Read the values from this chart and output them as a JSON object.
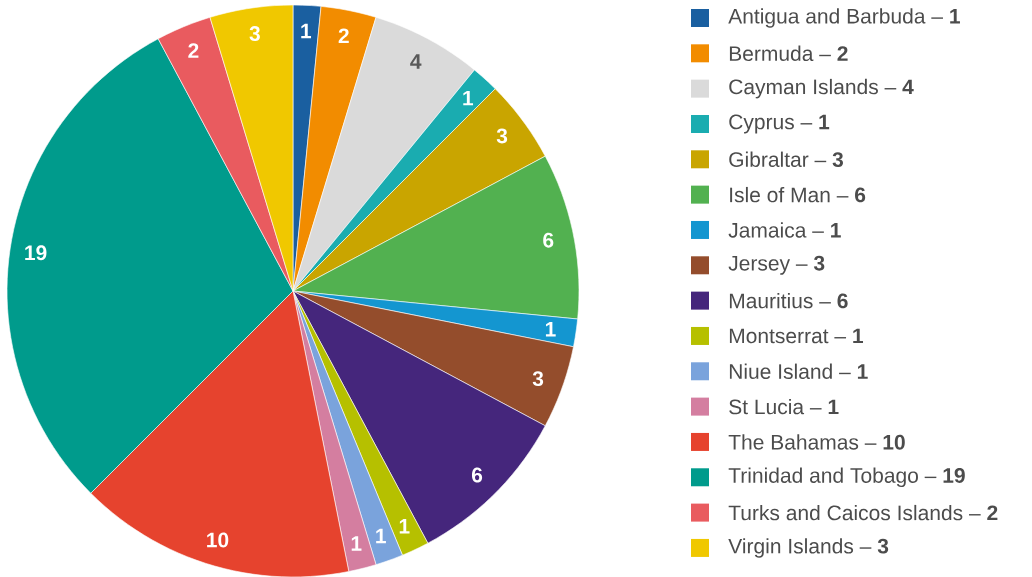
{
  "chart_data": {
    "type": "pie",
    "categories": [
      "Antigua and Barbuda – **1**",
      "Bermuda – **2**",
      "Cayman Islands – **4**",
      "Cyprus – **1**",
      "Gibraltar – **3**",
      "Isle of Man – **6**",
      "Jamaica – **1**",
      "Jersey – **3**",
      "Mauritius – **6**",
      "Montserrat – **1**",
      "Niue Island – **1**",
      "St Lucia – **1**",
      "The Bahamas – **10**",
      "Trinidad and Tobago – **19**",
      "Turks and Caicos Islands – **2**",
      "Virgin Islands – **3**"
    ],
    "values": [
      1,
      2,
      4,
      1,
      3,
      6,
      1,
      3,
      6,
      1,
      1,
      1,
      10,
      19,
      2,
      3
    ],
    "colors": [
      "#1a5fa0",
      "#f28c00",
      "#dadada",
      "#1aacb0",
      "#c9a500",
      "#52b150",
      "#1496d0",
      "#944d2c",
      "#45267c",
      "#b6c000",
      "#7aa3dc",
      "#d47ea0",
      "#e6432e",
      "#009b8c",
      "#e95b5f",
      "#f0c800"
    ],
    "data_labels": true,
    "legend": "right"
  }
}
